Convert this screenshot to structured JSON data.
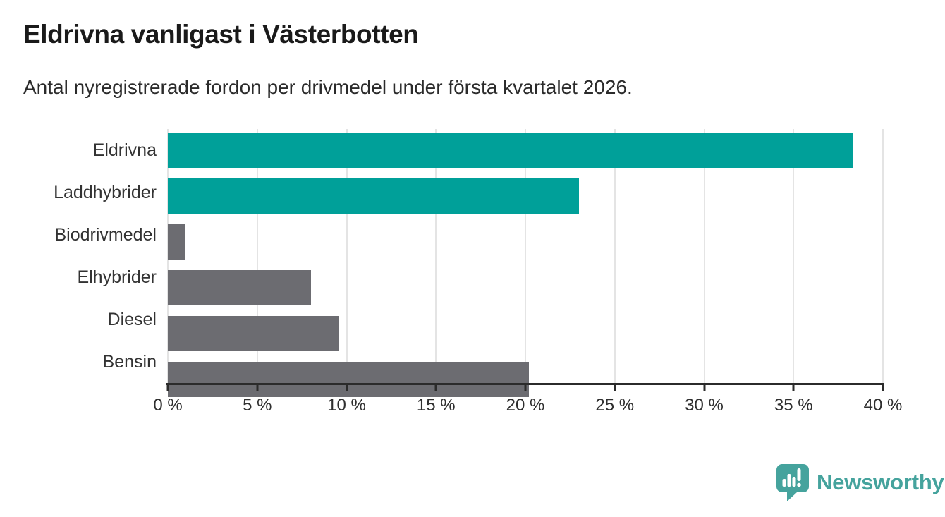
{
  "chart_data": {
    "type": "bar",
    "orientation": "horizontal",
    "title": "Eldrivna vanligast i Västerbotten",
    "subtitle": "Antal nyregistrerade fordon per drivmedel under första kvartalet 2026.",
    "categories": [
      "Eldrivna",
      "Laddhybrider",
      "Biodrivmedel",
      "Elhybrider",
      "Diesel",
      "Bensin"
    ],
    "values": [
      38.3,
      23.0,
      1.0,
      8.0,
      9.6,
      20.2
    ],
    "bar_colors": [
      "#00A099",
      "#00A099",
      "#6C6C71",
      "#6C6C71",
      "#6C6C71",
      "#6C6C71"
    ],
    "xlim": [
      0,
      40
    ],
    "x_ticks": [
      0,
      5,
      10,
      15,
      20,
      25,
      30,
      35,
      40
    ],
    "x_tick_labels": [
      "0 %",
      "5 %",
      "10 %",
      "15 %",
      "20 %",
      "25 %",
      "30 %",
      "35 %",
      "40 %"
    ],
    "xlabel": "",
    "ylabel": "",
    "grid": "vertical-gridlines",
    "legend": "none"
  },
  "footer": {
    "brand": "Newsworthy"
  },
  "colors": {
    "highlight_bar": "#00A099",
    "muted_bar": "#6C6C71",
    "gridline": "#E4E4E4",
    "axis": "#2B2B2B",
    "title_text": "#1A1A1A",
    "body_text": "#2B2B2B",
    "logo": "#45A39D"
  }
}
